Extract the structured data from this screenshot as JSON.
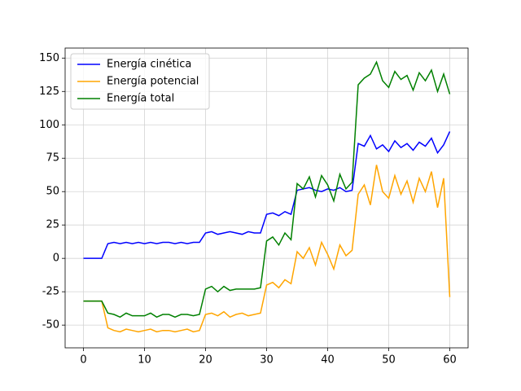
{
  "chart_data": {
    "type": "line",
    "x": [
      0,
      1,
      2,
      3,
      4,
      5,
      6,
      7,
      8,
      9,
      10,
      11,
      12,
      13,
      14,
      15,
      16,
      17,
      18,
      19,
      20,
      21,
      22,
      23,
      24,
      25,
      26,
      27,
      28,
      29,
      30,
      31,
      32,
      33,
      34,
      35,
      36,
      37,
      38,
      39,
      40,
      41,
      42,
      43,
      44,
      45,
      46,
      47,
      48,
      49,
      50,
      51,
      52,
      53,
      54,
      55,
      56,
      57,
      58,
      59,
      60
    ],
    "series": [
      {
        "name": "Energía cinética",
        "color": "#0000ff",
        "values": [
          0,
          0,
          0,
          0,
          11,
          12,
          11,
          12,
          11,
          12,
          11,
          12,
          11,
          12,
          12,
          11,
          12,
          11,
          12,
          12,
          19,
          20,
          18,
          19,
          20,
          19,
          18,
          20,
          19,
          19,
          33,
          34,
          32,
          35,
          33,
          51,
          52,
          53,
          51,
          50,
          52,
          51,
          53,
          50,
          51,
          86,
          84,
          92,
          82,
          85,
          80,
          88,
          83,
          86,
          81,
          87,
          84,
          90,
          79,
          85,
          95
        ]
      },
      {
        "name": "Energía potencial",
        "color": "#ffa500",
        "values": [
          -32,
          -32,
          -32,
          -32,
          -52,
          -54,
          -55,
          -53,
          -54,
          -55,
          -54,
          -53,
          -55,
          -54,
          -54,
          -55,
          -54,
          -53,
          -55,
          -54,
          -42,
          -41,
          -43,
          -40,
          -44,
          -42,
          -41,
          -43,
          -42,
          -41,
          -20,
          -18,
          -22,
          -16,
          -19,
          5,
          0,
          8,
          -5,
          12,
          3,
          -8,
          10,
          2,
          6,
          48,
          55,
          40,
          70,
          50,
          45,
          62,
          48,
          58,
          42,
          60,
          50,
          65,
          38,
          60,
          -29
        ]
      },
      {
        "name": "Energía total",
        "color": "#008000",
        "values": [
          -32,
          -32,
          -32,
          -32,
          -41,
          -42,
          -44,
          -41,
          -43,
          -43,
          -43,
          -41,
          -44,
          -42,
          -42,
          -44,
          -42,
          -42,
          -43,
          -42,
          -23,
          -21,
          -25,
          -21,
          -24,
          -23,
          -23,
          -23,
          -23,
          -22,
          13,
          16,
          10,
          19,
          14,
          56,
          52,
          61,
          46,
          62,
          55,
          43,
          63,
          52,
          57,
          130,
          135,
          138,
          147,
          133,
          128,
          140,
          134,
          137,
          126,
          139,
          133,
          141,
          125,
          138,
          123
        ]
      }
    ],
    "xlim": [
      -3,
      63
    ],
    "xticks": [
      0,
      10,
      20,
      30,
      40,
      50,
      60
    ],
    "ylim": [
      -67,
      157.5
    ],
    "yticks": [
      -50,
      -25,
      0,
      25,
      50,
      75,
      100,
      125,
      150
    ],
    "grid": true,
    "legend": "upper-left"
  }
}
